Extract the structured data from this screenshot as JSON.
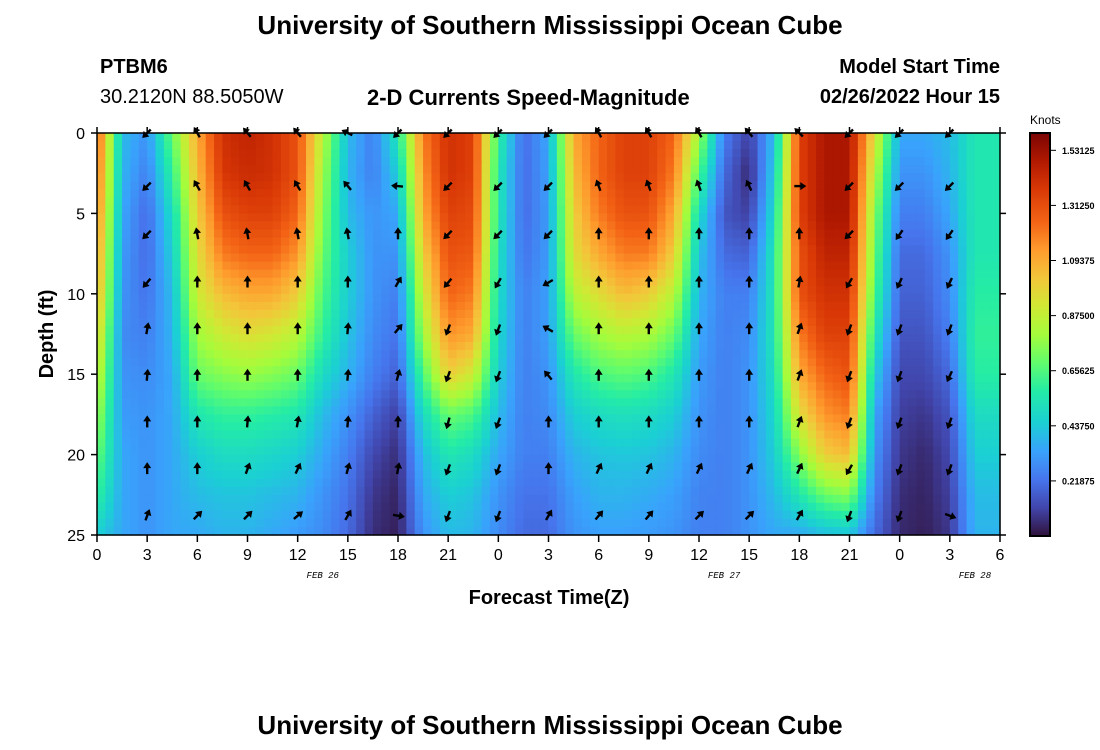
{
  "page": {
    "title": "University of Southern Mississippi Ocean Cube",
    "bottom_title": "University of Southern Mississippi Ocean Cube",
    "station_id": "PTBM6",
    "coordinates": "30.2120N  88.5050W",
    "subtitle": "2-D Currents Speed-Magnitude",
    "model_start_label": "Model Start Time",
    "model_start_value": "02/26/2022 Hour 15"
  },
  "chart_data": {
    "type": "heatmap",
    "title": "2-D Currents Speed-Magnitude",
    "xlabel": "Forecast Time(Z)",
    "ylabel": "Depth (ft)",
    "ylim": [
      0,
      25
    ],
    "y_ticks": [
      0,
      5,
      10,
      15,
      20,
      25
    ],
    "x_ticks": [
      "0",
      "3",
      "6",
      "9",
      "12",
      "15",
      "18",
      "21",
      "0",
      "3",
      "6",
      "9",
      "12",
      "15",
      "18",
      "21",
      "0",
      "3",
      "6"
    ],
    "date_labels": [
      {
        "label": "FEB 26",
        "after_tick": 3
      },
      {
        "label": "FEB 27",
        "after_tick": 11
      },
      {
        "label": "FEB 28",
        "after_tick": 16
      }
    ],
    "colorbar": {
      "units": "Knots",
      "ticks": [
        "1.53125",
        "1.31250",
        "1.09375",
        "0.87500",
        "0.65625",
        "0.43750",
        "0.21875"
      ],
      "min": 0.0,
      "max": 1.6
    },
    "columns_hours_from_start": [
      0,
      1.5,
      3,
      4.5,
      6,
      7.5,
      9,
      10.5,
      12,
      13.5,
      15,
      16.5,
      18,
      19.5,
      21,
      22.5,
      24,
      25.5,
      27,
      28.5,
      30,
      31.5,
      33,
      34.5,
      36,
      37.5,
      39,
      40.5,
      42,
      43.5,
      45,
      46.5,
      48,
      49.5,
      51,
      52.5,
      54
    ],
    "depth_rows_ft": [
      0,
      2.5,
      5,
      7.5,
      10,
      12.5,
      15,
      17.5,
      20,
      22.5,
      25
    ],
    "speed_knots": [
      [
        1.3,
        1.25,
        1.2,
        1.15,
        1.1,
        1.0,
        0.9,
        0.8,
        0.7,
        0.6,
        0.45
      ],
      [
        0.4,
        0.38,
        0.35,
        0.32,
        0.3,
        0.28,
        0.3,
        0.32,
        0.35,
        0.35,
        0.35
      ],
      [
        0.3,
        0.25,
        0.2,
        0.2,
        0.22,
        0.25,
        0.28,
        0.3,
        0.3,
        0.3,
        0.3
      ],
      [
        0.7,
        0.6,
        0.5,
        0.45,
        0.4,
        0.38,
        0.35,
        0.35,
        0.35,
        0.35,
        0.35
      ],
      [
        1.1,
        1.05,
        1.0,
        0.95,
        0.9,
        0.8,
        0.7,
        0.55,
        0.45,
        0.4,
        0.35
      ],
      [
        1.4,
        1.38,
        1.3,
        1.2,
        1.05,
        0.9,
        0.75,
        0.6,
        0.5,
        0.42,
        0.38
      ],
      [
        1.45,
        1.42,
        1.35,
        1.25,
        1.1,
        0.95,
        0.78,
        0.6,
        0.5,
        0.42,
        0.38
      ],
      [
        1.4,
        1.4,
        1.35,
        1.25,
        1.1,
        0.92,
        0.75,
        0.58,
        0.48,
        0.4,
        0.35
      ],
      [
        1.3,
        1.3,
        1.25,
        1.15,
        1.0,
        0.85,
        0.7,
        0.55,
        0.45,
        0.38,
        0.32
      ],
      [
        0.85,
        0.8,
        0.75,
        0.7,
        0.65,
        0.6,
        0.5,
        0.4,
        0.35,
        0.3,
        0.28
      ],
      [
        0.4,
        0.38,
        0.4,
        0.45,
        0.45,
        0.42,
        0.38,
        0.3,
        0.25,
        0.22,
        0.2
      ],
      [
        0.25,
        0.25,
        0.3,
        0.3,
        0.3,
        0.28,
        0.25,
        0.18,
        0.12,
        0.08,
        0.06
      ],
      [
        0.55,
        0.45,
        0.35,
        0.3,
        0.25,
        0.22,
        0.18,
        0.1,
        0.06,
        0.04,
        0.03
      ],
      [
        1.2,
        1.15,
        1.1,
        1.0,
        0.9,
        0.8,
        0.65,
        0.5,
        0.4,
        0.35,
        0.3
      ],
      [
        1.4,
        1.4,
        1.35,
        1.3,
        1.25,
        1.15,
        1.0,
        0.7,
        0.55,
        0.45,
        0.4
      ],
      [
        1.35,
        1.35,
        1.32,
        1.28,
        1.2,
        1.1,
        0.9,
        0.65,
        0.5,
        0.42,
        0.38
      ],
      [
        0.6,
        0.55,
        0.55,
        0.52,
        0.5,
        0.48,
        0.45,
        0.4,
        0.35,
        0.3,
        0.28
      ],
      [
        0.2,
        0.2,
        0.2,
        0.22,
        0.25,
        0.25,
        0.25,
        0.25,
        0.25,
        0.22,
        0.2
      ],
      [
        0.35,
        0.33,
        0.32,
        0.32,
        0.33,
        0.33,
        0.3,
        0.28,
        0.25,
        0.22,
        0.2
      ],
      [
        1.1,
        1.05,
        1.0,
        0.95,
        0.85,
        0.7,
        0.55,
        0.45,
        0.38,
        0.33,
        0.3
      ],
      [
        1.25,
        1.25,
        1.2,
        1.1,
        0.95,
        0.8,
        0.65,
        0.5,
        0.42,
        0.38,
        0.33
      ],
      [
        1.35,
        1.35,
        1.3,
        1.2,
        1.05,
        0.85,
        0.68,
        0.52,
        0.43,
        0.38,
        0.33
      ],
      [
        1.35,
        1.35,
        1.3,
        1.2,
        1.0,
        0.82,
        0.65,
        0.5,
        0.42,
        0.36,
        0.32
      ],
      [
        1.25,
        1.2,
        1.1,
        1.0,
        0.85,
        0.7,
        0.55,
        0.45,
        0.38,
        0.33,
        0.3
      ],
      [
        0.8,
        0.65,
        0.5,
        0.42,
        0.38,
        0.35,
        0.32,
        0.3,
        0.28,
        0.26,
        0.25
      ],
      [
        0.25,
        0.2,
        0.15,
        0.2,
        0.25,
        0.25,
        0.25,
        0.25,
        0.25,
        0.25,
        0.25
      ],
      [
        0.1,
        0.05,
        0.1,
        0.18,
        0.25,
        0.28,
        0.3,
        0.3,
        0.3,
        0.3,
        0.3
      ],
      [
        0.4,
        0.45,
        0.5,
        0.55,
        0.55,
        0.55,
        0.52,
        0.48,
        0.45,
        0.4,
        0.35
      ],
      [
        1.35,
        1.35,
        1.35,
        1.3,
        1.3,
        1.2,
        1.1,
        0.95,
        0.75,
        0.55,
        0.35
      ],
      [
        1.5,
        1.5,
        1.5,
        1.45,
        1.4,
        1.35,
        1.25,
        1.15,
        1.0,
        0.7,
        0.4
      ],
      [
        1.5,
        1.5,
        1.5,
        1.45,
        1.4,
        1.35,
        1.3,
        1.2,
        1.05,
        0.75,
        0.42
      ],
      [
        0.95,
        0.85,
        0.75,
        0.7,
        0.65,
        0.55,
        0.45,
        0.35,
        0.3,
        0.25,
        0.2
      ],
      [
        0.35,
        0.3,
        0.25,
        0.2,
        0.18,
        0.15,
        0.12,
        0.1,
        0.08,
        0.06,
        0.05
      ],
      [
        0.35,
        0.3,
        0.25,
        0.2,
        0.18,
        0.15,
        0.12,
        0.08,
        0.05,
        0.04,
        0.03
      ],
      [
        0.4,
        0.38,
        0.35,
        0.3,
        0.28,
        0.25,
        0.2,
        0.15,
        0.12,
        0.1,
        0.08
      ],
      [
        0.55,
        0.55,
        0.55,
        0.55,
        0.58,
        0.6,
        0.58,
        0.5,
        0.45,
        0.4,
        0.38
      ],
      [
        0.55,
        0.55,
        0.55,
        0.55,
        0.58,
        0.6,
        0.58,
        0.5,
        0.45,
        0.4,
        0.38
      ]
    ],
    "vector_depths_ft": [
      0,
      3.3,
      6.3,
      9.3,
      12.2,
      15.1,
      18,
      20.9,
      23.8
    ],
    "vectors": [
      {
        "hour": 3,
        "dirs": [
          225,
          225,
          225,
          220,
          10,
          5,
          0,
          0,
          20
        ]
      },
      {
        "hour": 6,
        "dirs": [
          330,
          330,
          350,
          0,
          0,
          0,
          0,
          0,
          45
        ]
      },
      {
        "hour": 9,
        "dirs": [
          320,
          330,
          350,
          0,
          0,
          0,
          5,
          20,
          45
        ]
      },
      {
        "hour": 12,
        "dirs": [
          320,
          330,
          350,
          0,
          0,
          0,
          10,
          25,
          50
        ]
      },
      {
        "hour": 15,
        "dirs": [
          295,
          320,
          350,
          0,
          5,
          5,
          5,
          15,
          30
        ]
      },
      {
        "hour": 18,
        "dirs": [
          225,
          275,
          0,
          30,
          40,
          15,
          0,
          10,
          100
        ]
      },
      {
        "hour": 21,
        "dirs": [
          225,
          225,
          225,
          220,
          200,
          200,
          195,
          200,
          200
        ]
      },
      {
        "hour": 24,
        "dirs": [
          225,
          225,
          225,
          210,
          200,
          200,
          200,
          200,
          200
        ]
      },
      {
        "hour": 27,
        "dirs": [
          225,
          225,
          225,
          240,
          300,
          320,
          0,
          0,
          30
        ]
      },
      {
        "hour": 30,
        "dirs": [
          330,
          340,
          0,
          0,
          0,
          0,
          0,
          25,
          40
        ]
      },
      {
        "hour": 33,
        "dirs": [
          330,
          340,
          0,
          0,
          0,
          0,
          0,
          25,
          40
        ]
      },
      {
        "hour": 36,
        "dirs": [
          330,
          340,
          0,
          0,
          0,
          0,
          0,
          25,
          45
        ]
      },
      {
        "hour": 39,
        "dirs": [
          320,
          335,
          0,
          0,
          0,
          0,
          0,
          25,
          45
        ]
      },
      {
        "hour": 42,
        "dirs": [
          315,
          90,
          0,
          10,
          20,
          20,
          20,
          25,
          30
        ]
      },
      {
        "hour": 45,
        "dirs": [
          225,
          225,
          225,
          210,
          200,
          200,
          200,
          210,
          200
        ]
      },
      {
        "hour": 48,
        "dirs": [
          225,
          225,
          215,
          205,
          200,
          200,
          200,
          200,
          200
        ]
      },
      {
        "hour": 51,
        "dirs": [
          225,
          225,
          215,
          205,
          200,
          205,
          200,
          200,
          110
        ]
      }
    ]
  }
}
